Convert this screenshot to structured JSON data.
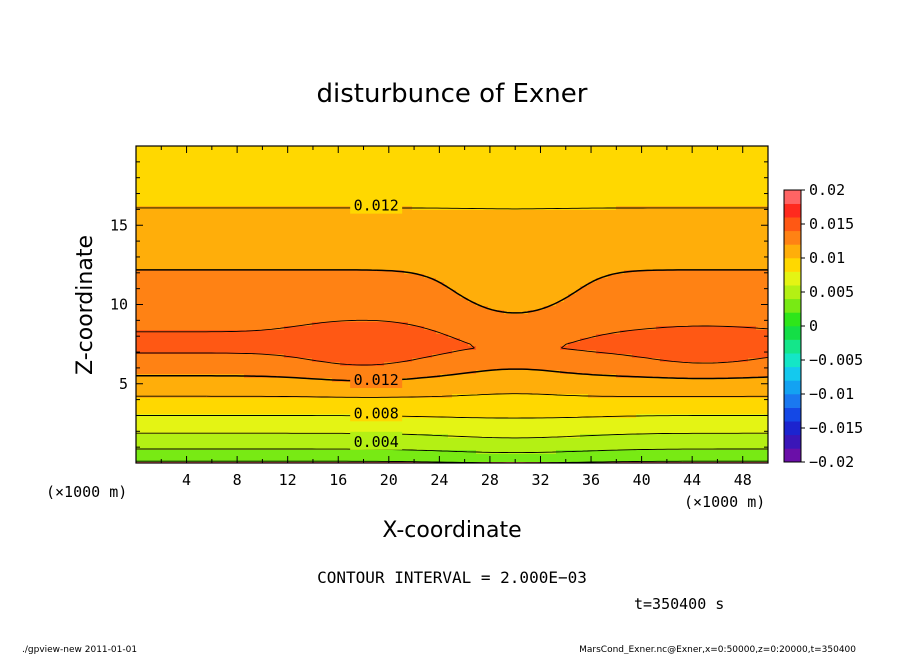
{
  "chart_data": {
    "type": "heatmap",
    "title": "disturbunce of Exner",
    "xlabel": "X-coordinate",
    "ylabel": "Z-coordinate",
    "x_unit": "(×1000 m)",
    "z_unit": "(×1000 m)",
    "xlim": [
      0,
      50
    ],
    "ylim": [
      0,
      20
    ],
    "x_ticks": [
      "4",
      "8",
      "12",
      "16",
      "20",
      "24",
      "28",
      "32",
      "36",
      "40",
      "44",
      "48"
    ],
    "y_ticks": [
      "5",
      "10",
      "15"
    ],
    "colorbar_ticks": [
      "0.02",
      "0.015",
      "0.01",
      "0.005",
      "0",
      "−0.005",
      "−0.01",
      "−0.015",
      "−0.02"
    ],
    "contour_labels": [
      "0.012",
      "0.012",
      "0.008",
      "0.004"
    ],
    "contour_interval": "CONTOUR INTERVAL = 2.000E−03",
    "time_label": "t=350400 s",
    "footer_left": "./gpview-new   2011-01-01",
    "footer_right": "MarsCond_Exner.nc@Exner,x=0:50000,z=0:20000,t=350400",
    "levels": [
      -0.02,
      -0.018,
      -0.016,
      -0.014,
      -0.012,
      -0.01,
      -0.008,
      -0.006,
      -0.004,
      -0.002,
      0,
      0.002,
      0.004,
      0.006,
      0.008,
      0.01,
      0.012,
      0.014,
      0.016,
      0.018,
      0.02
    ],
    "colors": [
      "#6a0fa8",
      "#3a16b8",
      "#1c24cf",
      "#1448e6",
      "#1a78f0",
      "#13a2f2",
      "#14c9ee",
      "#14e6c6",
      "#14e68a",
      "#14de46",
      "#2ee61a",
      "#78ea14",
      "#b4f014",
      "#e4f414",
      "#ffd800",
      "#ffae0a",
      "#ff8214",
      "#ff5814",
      "#ff2a1e",
      "#ff6464"
    ]
  }
}
